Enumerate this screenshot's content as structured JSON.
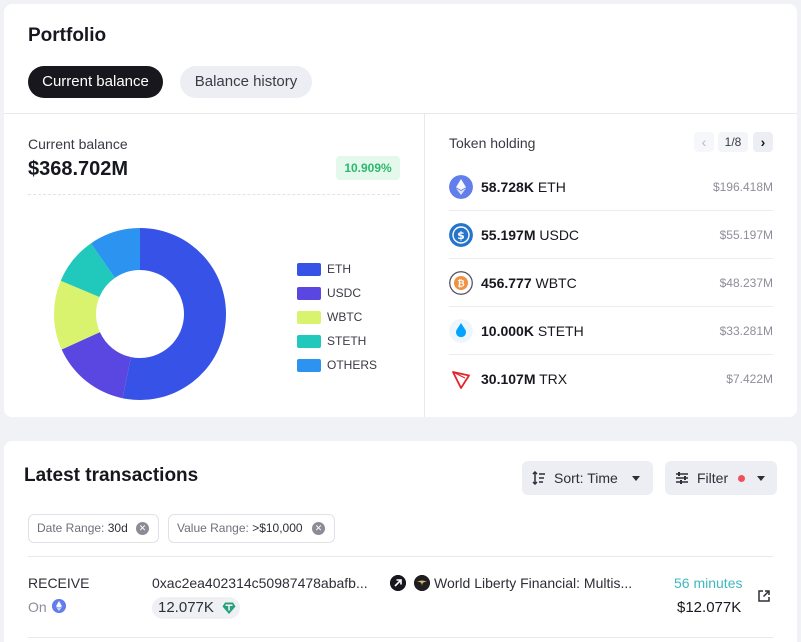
{
  "portfolio": {
    "title": "Portfolio",
    "tabs": [
      "Current balance",
      "Balance history"
    ],
    "active_tab": "Current balance"
  },
  "balance": {
    "label": "Current balance",
    "value": "$368.702M",
    "change": "10.909%",
    "change_color": "#2cb96d"
  },
  "chart_data": {
    "type": "pie",
    "categories": [
      "ETH",
      "USDC",
      "WBTC",
      "STETH",
      "OTHERS"
    ],
    "values": [
      53.27,
      14.97,
      13.08,
      9.03,
      9.65
    ],
    "colors": [
      "#3752e6",
      "#5a46e0",
      "#d9f36f",
      "#21c9bd",
      "#2c93f0"
    ],
    "donut": true,
    "legend_position": "right"
  },
  "token_holding": {
    "title": "Token holding",
    "page": "1/8",
    "tokens": [
      {
        "amount": "58.728K",
        "symbol": "ETH",
        "usd": "$196.418M",
        "icon": "eth-icon"
      },
      {
        "amount": "55.197M",
        "symbol": "USDC",
        "usd": "$55.197M",
        "icon": "usdc-icon"
      },
      {
        "amount": "456.777",
        "symbol": "WBTC",
        "usd": "$48.237M",
        "icon": "wbtc-icon"
      },
      {
        "amount": "10.000K",
        "symbol": "STETH",
        "usd": "$33.281M",
        "icon": "steth-icon"
      },
      {
        "amount": "30.107M",
        "symbol": "TRX",
        "usd": "$7.422M",
        "icon": "trx-icon"
      }
    ]
  },
  "transactions": {
    "title": "Latest transactions",
    "sort_label": "Sort: Time",
    "filter_label": "Filter",
    "chips": [
      {
        "label": "Date Range:",
        "value": "30d"
      },
      {
        "label": "Value Range:",
        "value": ">$10,000"
      }
    ],
    "rows": [
      {
        "type": "RECEIVE",
        "chain_label": "On",
        "hash": "0xac2ea402314c50987478abafb...",
        "entity": "World Liberty Financial: Multis...",
        "amount": "12.077K",
        "time": "56 minutes",
        "value": "$12.077K"
      }
    ]
  }
}
